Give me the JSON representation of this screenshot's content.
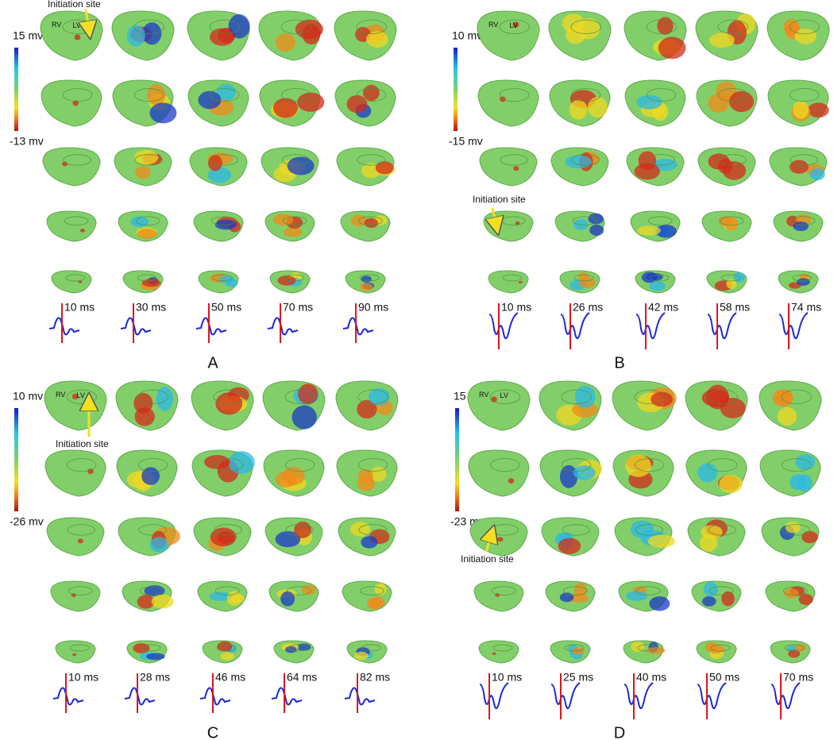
{
  "panels": [
    {
      "label": "A",
      "colorbar": {
        "top": "15 mv",
        "bottom": "-13 mv"
      },
      "times": [
        "10 ms",
        "30 ms",
        "50 ms",
        "70 ms",
        "90 ms"
      ],
      "initiation": "Initiation site",
      "rv": "RV",
      "lv": "LV"
    },
    {
      "label": "B",
      "colorbar": {
        "top": "10 mv",
        "bottom": "-15 mv"
      },
      "times": [
        "10 ms",
        "26 ms",
        "42 ms",
        "58 ms",
        "74 ms"
      ],
      "initiation": "Initiation site",
      "rv": "RV",
      "lv": "LV"
    },
    {
      "label": "C",
      "colorbar": {
        "top": "10 mv",
        "bottom": "-26 mv"
      },
      "times": [
        "10 ms",
        "28 ms",
        "46 ms",
        "64 ms",
        "82 ms"
      ],
      "initiation": "Initiation site",
      "rv": "RV",
      "lv": "LV"
    },
    {
      "label": "D",
      "colorbar": {
        "top": "15 mv",
        "bottom": "-23 mv"
      },
      "times": [
        "10 ms",
        "25 ms",
        "40 ms",
        "50 ms",
        "70 ms"
      ],
      "initiation": "Initiation site",
      "rv": "RV",
      "lv": "LV"
    }
  ]
}
